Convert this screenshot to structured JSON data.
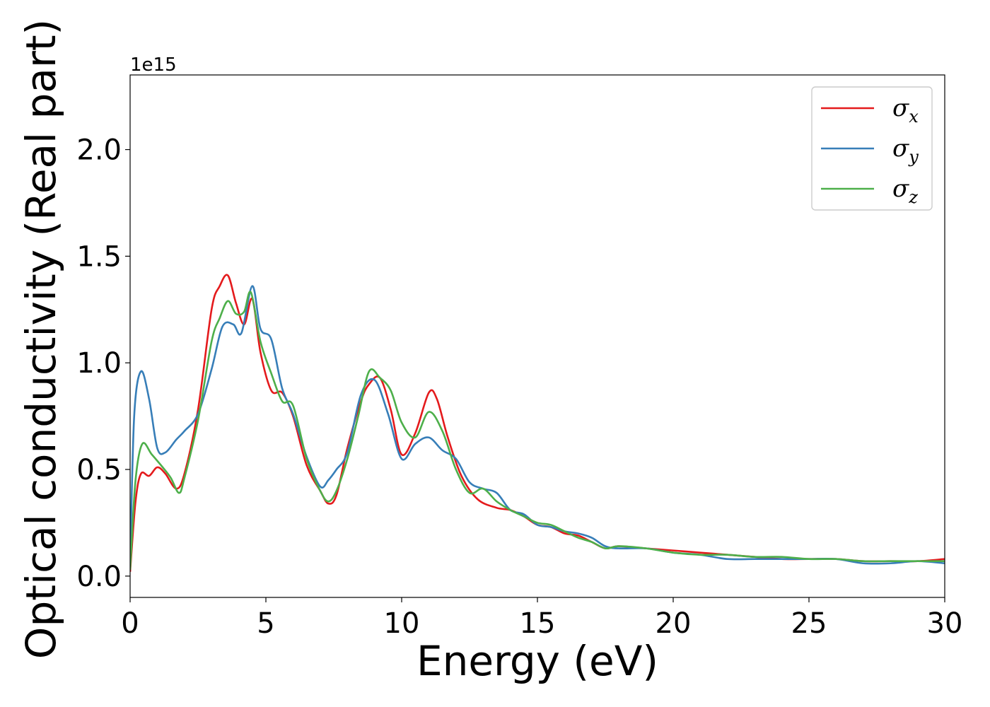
{
  "chart_data": {
    "type": "line",
    "title": "",
    "xlabel": "Energy (eV)",
    "ylabel": "Optical conductivity (Real part)",
    "y_offset_text": "1e15",
    "xlim": [
      0,
      30
    ],
    "ylim": [
      -0.1,
      2.35
    ],
    "x_ticks": [
      0,
      5,
      10,
      15,
      20,
      25,
      30
    ],
    "y_ticks": [
      0.0,
      0.5,
      1.0,
      1.5,
      2.0
    ],
    "y_tick_labels": [
      "0.0",
      "0.5",
      "1.0",
      "1.5",
      "2.0"
    ],
    "grid": false,
    "legend_position": "top-right",
    "series": [
      {
        "name": "σx",
        "symbol": "σ",
        "subscript": "x",
        "color": "#e41a1c",
        "x": [
          0,
          0.2,
          0.4,
          0.7,
          1.0,
          1.3,
          1.7,
          2.0,
          2.5,
          3.0,
          3.3,
          3.6,
          3.9,
          4.2,
          4.5,
          4.8,
          5.2,
          5.6,
          6.0,
          6.5,
          7.0,
          7.3,
          7.6,
          8.0,
          8.5,
          8.8,
          9.2,
          9.6,
          10.0,
          10.5,
          11.0,
          11.3,
          11.7,
          12.2,
          12.8,
          13.5,
          14.0,
          14.5,
          15.0,
          15.5,
          16.0,
          16.5,
          17.0,
          17.5,
          18.0,
          19.0,
          20.0,
          21.0,
          22.0,
          23.0,
          24.0,
          25.0,
          26.0,
          27.0,
          28.0,
          29.0,
          30.0
        ],
        "values": [
          0.02,
          0.35,
          0.48,
          0.47,
          0.51,
          0.48,
          0.41,
          0.48,
          0.78,
          1.25,
          1.36,
          1.41,
          1.28,
          1.18,
          1.3,
          1.05,
          0.87,
          0.86,
          0.75,
          0.52,
          0.4,
          0.34,
          0.38,
          0.6,
          0.82,
          0.9,
          0.93,
          0.78,
          0.57,
          0.67,
          0.86,
          0.83,
          0.65,
          0.47,
          0.36,
          0.32,
          0.31,
          0.28,
          0.24,
          0.23,
          0.2,
          0.19,
          0.16,
          0.13,
          0.14,
          0.13,
          0.12,
          0.11,
          0.1,
          0.09,
          0.08,
          0.08,
          0.08,
          0.07,
          0.07,
          0.07,
          0.08
        ]
      },
      {
        "name": "σy",
        "symbol": "σ",
        "subscript": "y",
        "color": "#377eb8",
        "x": [
          0,
          0.15,
          0.4,
          0.7,
          1.0,
          1.3,
          1.7,
          2.0,
          2.5,
          3.0,
          3.4,
          3.8,
          4.1,
          4.5,
          4.8,
          5.2,
          5.6,
          6.0,
          6.5,
          7.0,
          7.3,
          7.6,
          8.0,
          8.5,
          9.0,
          9.5,
          10.0,
          10.5,
          11.0,
          11.5,
          12.0,
          12.5,
          13.0,
          13.5,
          14.0,
          14.5,
          15.0,
          15.5,
          16.0,
          16.5,
          17.0,
          17.5,
          18.0,
          19.0,
          20.0,
          21.0,
          22.0,
          23.0,
          24.0,
          25.0,
          26.0,
          27.0,
          28.0,
          29.0,
          30.0
        ],
        "values": [
          0.05,
          0.75,
          0.96,
          0.83,
          0.6,
          0.58,
          0.64,
          0.68,
          0.76,
          0.97,
          1.17,
          1.18,
          1.14,
          1.36,
          1.16,
          1.11,
          0.88,
          0.76,
          0.56,
          0.42,
          0.45,
          0.5,
          0.58,
          0.85,
          0.92,
          0.76,
          0.55,
          0.62,
          0.65,
          0.59,
          0.55,
          0.44,
          0.41,
          0.39,
          0.31,
          0.29,
          0.24,
          0.23,
          0.21,
          0.2,
          0.18,
          0.14,
          0.13,
          0.13,
          0.11,
          0.1,
          0.08,
          0.08,
          0.08,
          0.08,
          0.08,
          0.06,
          0.06,
          0.07,
          0.06
        ]
      },
      {
        "name": "σz",
        "symbol": "σ",
        "subscript": "z",
        "color": "#4daf4a",
        "x": [
          0,
          0.2,
          0.45,
          0.8,
          1.2,
          1.5,
          1.8,
          2.0,
          2.5,
          3.0,
          3.3,
          3.6,
          3.9,
          4.2,
          4.45,
          4.8,
          5.2,
          5.6,
          6.0,
          6.5,
          7.0,
          7.3,
          7.6,
          8.0,
          8.4,
          8.8,
          9.2,
          9.6,
          10.0,
          10.5,
          11.0,
          11.5,
          12.0,
          12.5,
          13.0,
          13.5,
          14.0,
          14.5,
          15.0,
          15.5,
          16.0,
          16.5,
          17.0,
          17.5,
          18.0,
          19.0,
          20.0,
          21.0,
          22.0,
          23.0,
          24.0,
          25.0,
          26.0,
          27.0,
          28.0,
          29.0,
          30.0
        ],
        "values": [
          0.03,
          0.45,
          0.62,
          0.57,
          0.51,
          0.46,
          0.39,
          0.46,
          0.73,
          1.1,
          1.21,
          1.29,
          1.23,
          1.24,
          1.33,
          1.1,
          0.95,
          0.82,
          0.8,
          0.55,
          0.4,
          0.35,
          0.4,
          0.55,
          0.75,
          0.96,
          0.93,
          0.87,
          0.72,
          0.65,
          0.77,
          0.68,
          0.5,
          0.39,
          0.41,
          0.35,
          0.31,
          0.28,
          0.25,
          0.24,
          0.21,
          0.18,
          0.16,
          0.13,
          0.14,
          0.13,
          0.11,
          0.1,
          0.1,
          0.09,
          0.09,
          0.08,
          0.08,
          0.07,
          0.07,
          0.07,
          0.07
        ]
      }
    ]
  }
}
